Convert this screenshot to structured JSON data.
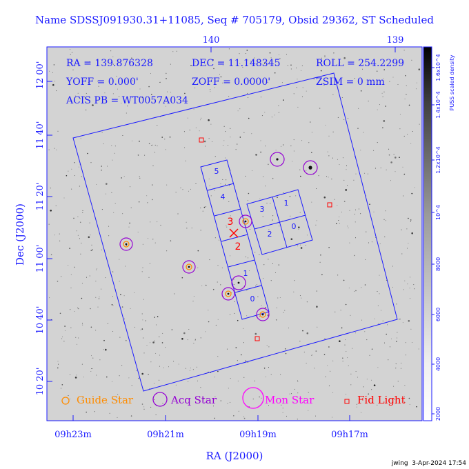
{
  "title": "Name SDSSJ091930.31+11085, Seq # 705179, Obsid 29362, ST Scheduled",
  "info": {
    "ra": "RA = 139.876328",
    "dec": "DEC = 11.148345",
    "roll": "ROLL = 254.2299",
    "yoff": "YOFF = 0.000'",
    "zoff": "ZOFF = 0.0000'",
    "zsim": "ZSIM = 0 mm",
    "acis": "ACIS PB = WT0057A034"
  },
  "axes": {
    "xlabel": "RA (J2000)",
    "ylabel": "Dec (J2000)",
    "ra_ticks": [
      "09h23m",
      "09h21m",
      "09h19m",
      "09h17m"
    ],
    "top_ticks": [
      "140",
      "139"
    ],
    "dec_ticks": [
      "12 00'",
      "11 40'",
      "11 20'",
      "11 00'",
      "10 40'",
      "10 20'"
    ]
  },
  "colorbar": {
    "label": "PUSS scaled density",
    "ticks": [
      "1.6x10^4",
      "1.4x10^4",
      "1.2x10^4",
      "10^4",
      "8000",
      "6000",
      "4000",
      "2000"
    ]
  },
  "chips": {
    "s_chips": [
      "5",
      "4",
      "3",
      "2",
      "1",
      "0"
    ],
    "i_chips": [
      "3",
      "1",
      "2",
      "0"
    ]
  },
  "legend": {
    "guide": "Guide Star",
    "acq": "Acq Star",
    "mon": "Mon Star",
    "fid": "Fid Light"
  },
  "footer": "jwing  3-Apr-2024 17:54",
  "colors": {
    "title": "#1a1aff",
    "fov": "#1a1aff",
    "guide": "#ff8c00",
    "acq": "#9400d3",
    "mon": "#ff00ff",
    "fid": "#ff0000"
  }
}
